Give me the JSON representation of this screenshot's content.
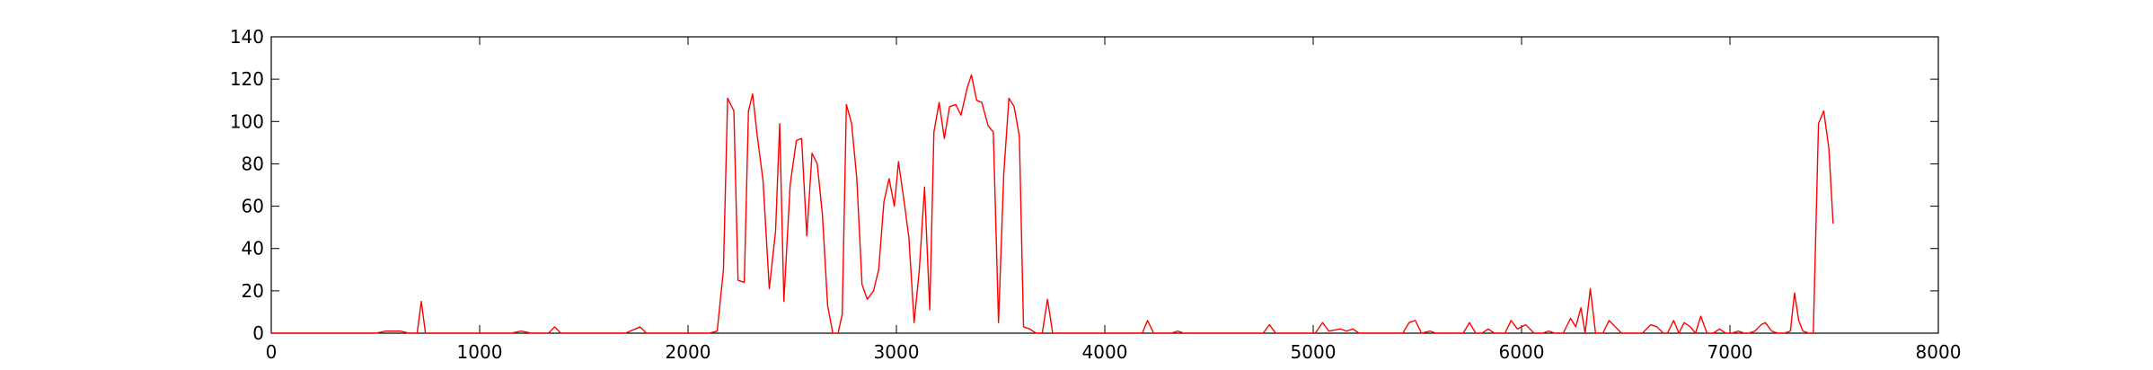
{
  "chart_data": {
    "type": "line",
    "title": "",
    "xlabel": "",
    "ylabel": "",
    "xlim": [
      0,
      8000
    ],
    "ylim": [
      0,
      140
    ],
    "grid": false,
    "x_ticks": [
      0,
      1000,
      2000,
      3000,
      4000,
      5000,
      6000,
      7000,
      8000
    ],
    "y_ticks": [
      0,
      20,
      40,
      60,
      80,
      100,
      120,
      140
    ],
    "series": [
      {
        "color": "#ff0000",
        "points": [
          [
            0,
            0
          ],
          [
            500,
            0
          ],
          [
            550,
            1
          ],
          [
            620,
            1
          ],
          [
            660,
            0
          ],
          [
            700,
            0
          ],
          [
            720,
            15
          ],
          [
            740,
            0
          ],
          [
            1000,
            0
          ],
          [
            1150,
            0
          ],
          [
            1200,
            1
          ],
          [
            1250,
            0
          ],
          [
            1330,
            0
          ],
          [
            1360,
            3
          ],
          [
            1390,
            0
          ],
          [
            1700,
            0
          ],
          [
            1770,
            3
          ],
          [
            1800,
            0
          ],
          [
            2100,
            0
          ],
          [
            2140,
            1
          ],
          [
            2170,
            30
          ],
          [
            2190,
            111
          ],
          [
            2220,
            105
          ],
          [
            2240,
            25
          ],
          [
            2270,
            24
          ],
          [
            2290,
            105
          ],
          [
            2310,
            113
          ],
          [
            2330,
            95
          ],
          [
            2360,
            72
          ],
          [
            2390,
            21
          ],
          [
            2420,
            48
          ],
          [
            2440,
            99
          ],
          [
            2460,
            15
          ],
          [
            2490,
            70
          ],
          [
            2520,
            91
          ],
          [
            2545,
            92
          ],
          [
            2570,
            46
          ],
          [
            2595,
            85
          ],
          [
            2620,
            80
          ],
          [
            2645,
            56
          ],
          [
            2670,
            13
          ],
          [
            2695,
            0
          ],
          [
            2720,
            0
          ],
          [
            2740,
            9
          ],
          [
            2760,
            108
          ],
          [
            2785,
            99
          ],
          [
            2810,
            73
          ],
          [
            2835,
            23
          ],
          [
            2860,
            16
          ],
          [
            2890,
            20
          ],
          [
            2915,
            30
          ],
          [
            2940,
            62
          ],
          [
            2965,
            73
          ],
          [
            2990,
            60
          ],
          [
            3010,
            81
          ],
          [
            3040,
            60
          ],
          [
            3060,
            45
          ],
          [
            3085,
            5
          ],
          [
            3110,
            30
          ],
          [
            3135,
            69
          ],
          [
            3160,
            11
          ],
          [
            3180,
            95
          ],
          [
            3205,
            109
          ],
          [
            3230,
            92
          ],
          [
            3255,
            107
          ],
          [
            3285,
            108
          ],
          [
            3310,
            103
          ],
          [
            3340,
            116
          ],
          [
            3360,
            122
          ],
          [
            3385,
            110
          ],
          [
            3410,
            109
          ],
          [
            3440,
            98
          ],
          [
            3465,
            95
          ],
          [
            3490,
            5
          ],
          [
            3515,
            75
          ],
          [
            3540,
            111
          ],
          [
            3565,
            107
          ],
          [
            3590,
            93
          ],
          [
            3610,
            3
          ],
          [
            3640,
            2
          ],
          [
            3670,
            0
          ],
          [
            3700,
            0
          ],
          [
            3725,
            16
          ],
          [
            3750,
            0
          ],
          [
            3900,
            0
          ],
          [
            4180,
            0
          ],
          [
            4205,
            6
          ],
          [
            4235,
            0
          ],
          [
            4320,
            0
          ],
          [
            4350,
            1
          ],
          [
            4380,
            0
          ],
          [
            4760,
            0
          ],
          [
            4790,
            4
          ],
          [
            4820,
            0
          ],
          [
            5010,
            0
          ],
          [
            5045,
            5
          ],
          [
            5075,
            1
          ],
          [
            5130,
            2
          ],
          [
            5160,
            1
          ],
          [
            5190,
            2
          ],
          [
            5220,
            0
          ],
          [
            5430,
            0
          ],
          [
            5460,
            5
          ],
          [
            5490,
            6
          ],
          [
            5520,
            0
          ],
          [
            5560,
            1
          ],
          [
            5590,
            0
          ],
          [
            5720,
            0
          ],
          [
            5750,
            5
          ],
          [
            5780,
            0
          ],
          [
            5810,
            0
          ],
          [
            5840,
            2
          ],
          [
            5870,
            0
          ],
          [
            5920,
            0
          ],
          [
            5950,
            6
          ],
          [
            5980,
            2
          ],
          [
            6020,
            4
          ],
          [
            6060,
            0
          ],
          [
            6100,
            0
          ],
          [
            6130,
            1
          ],
          [
            6160,
            0
          ],
          [
            6200,
            0
          ],
          [
            6235,
            7
          ],
          [
            6260,
            3
          ],
          [
            6285,
            12
          ],
          [
            6305,
            0
          ],
          [
            6330,
            21
          ],
          [
            6355,
            0
          ],
          [
            6390,
            0
          ],
          [
            6420,
            6
          ],
          [
            6450,
            3
          ],
          [
            6480,
            0
          ],
          [
            6580,
            0
          ],
          [
            6620,
            4
          ],
          [
            6650,
            3
          ],
          [
            6680,
            0
          ],
          [
            6700,
            0
          ],
          [
            6730,
            6
          ],
          [
            6755,
            0
          ],
          [
            6780,
            5
          ],
          [
            6810,
            3
          ],
          [
            6835,
            0
          ],
          [
            6860,
            8
          ],
          [
            6890,
            0
          ],
          [
            6920,
            0
          ],
          [
            6950,
            2
          ],
          [
            6980,
            0
          ],
          [
            7010,
            0
          ],
          [
            7040,
            1
          ],
          [
            7070,
            0
          ],
          [
            7090,
            0
          ],
          [
            7120,
            1
          ],
          [
            7150,
            4
          ],
          [
            7170,
            5
          ],
          [
            7200,
            1
          ],
          [
            7230,
            0
          ],
          [
            7260,
            0
          ],
          [
            7290,
            1
          ],
          [
            7310,
            19
          ],
          [
            7330,
            6
          ],
          [
            7350,
            1
          ],
          [
            7380,
            0
          ],
          [
            7400,
            0
          ],
          [
            7425,
            99
          ],
          [
            7450,
            105
          ],
          [
            7475,
            87
          ],
          [
            7495,
            52
          ]
        ]
      }
    ]
  }
}
